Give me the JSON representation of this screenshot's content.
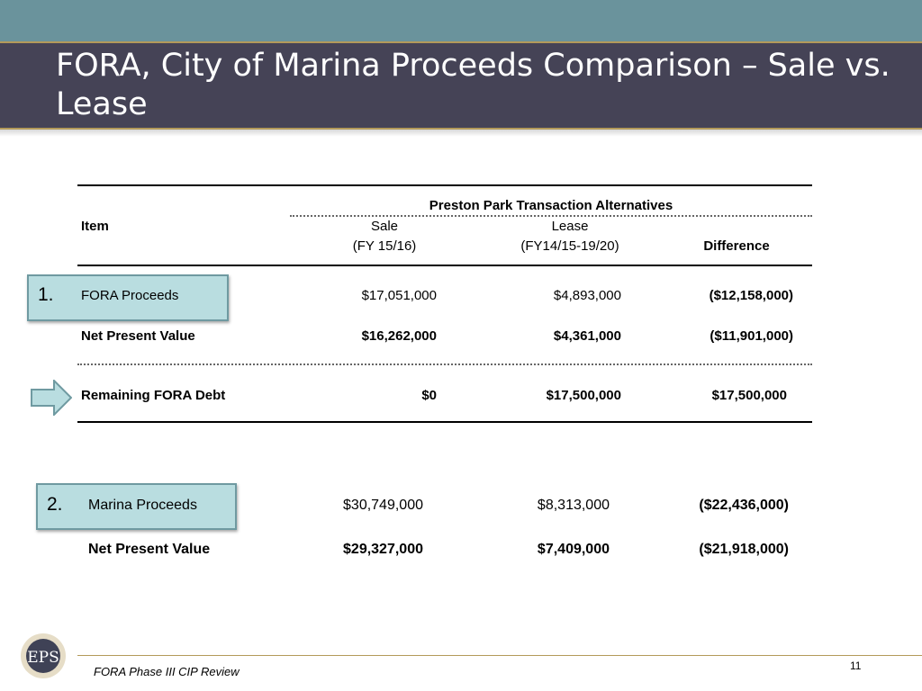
{
  "slide": {
    "title": "FORA, City of Marina Proceeds Comparison – Sale vs. Lease",
    "footer": "FORA Phase III CIP Review",
    "page_number": "11",
    "logo_text": "EPS"
  },
  "table1": {
    "group_header": "Preston Park Transaction Alternatives",
    "col_item": "Item",
    "col_sale": "Sale",
    "col_sale_sub": "(FY 15/16)",
    "col_lease": "Lease",
    "col_lease_sub": "(FY14/15-19/20)",
    "col_difference": "Difference",
    "rows": [
      {
        "item": "FORA Proceeds",
        "sale": "$17,051,000",
        "lease": "$4,893,000",
        "difference": "($12,158,000)"
      },
      {
        "item": "Net Present Value",
        "sale": "$16,262,000",
        "lease": "$4,361,000",
        "difference": "($11,901,000)"
      },
      {
        "item": "Remaining FORA Debt",
        "sale": "$0",
        "lease": "$17,500,000",
        "difference": "$17,500,000"
      }
    ]
  },
  "table2": {
    "rows": [
      {
        "item": "Marina Proceeds",
        "sale": "$30,749,000",
        "lease": "$8,313,000",
        "difference": "($22,436,000)"
      },
      {
        "item": "Net Present Value",
        "sale": "$29,327,000",
        "lease": "$7,409,000",
        "difference": "($21,918,000)"
      }
    ]
  },
  "callouts": {
    "first": "1.",
    "second": "2."
  }
}
